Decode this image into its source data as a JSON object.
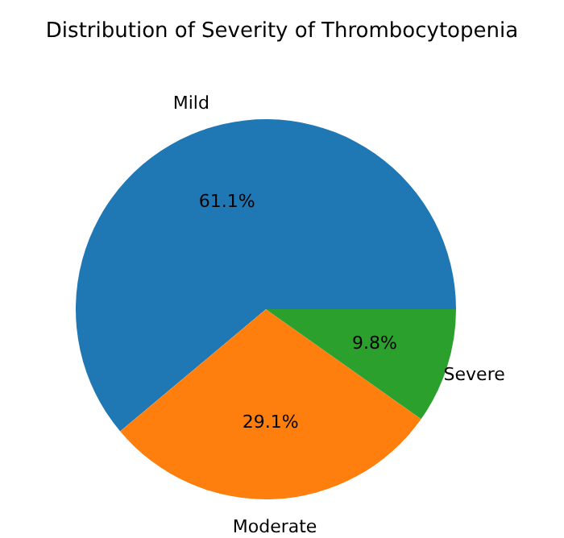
{
  "chart_data": {
    "type": "pie",
    "title": "Distribution of Severity of Thrombocytopenia",
    "categories": [
      "Mild",
      "Moderate",
      "Severe"
    ],
    "values": [
      61.1,
      29.1,
      9.8
    ],
    "value_labels": [
      "61.1%",
      "29.1%",
      "9.8%"
    ],
    "colors": [
      "#1f77b4",
      "#ff7f0e",
      "#2ca02c"
    ]
  }
}
